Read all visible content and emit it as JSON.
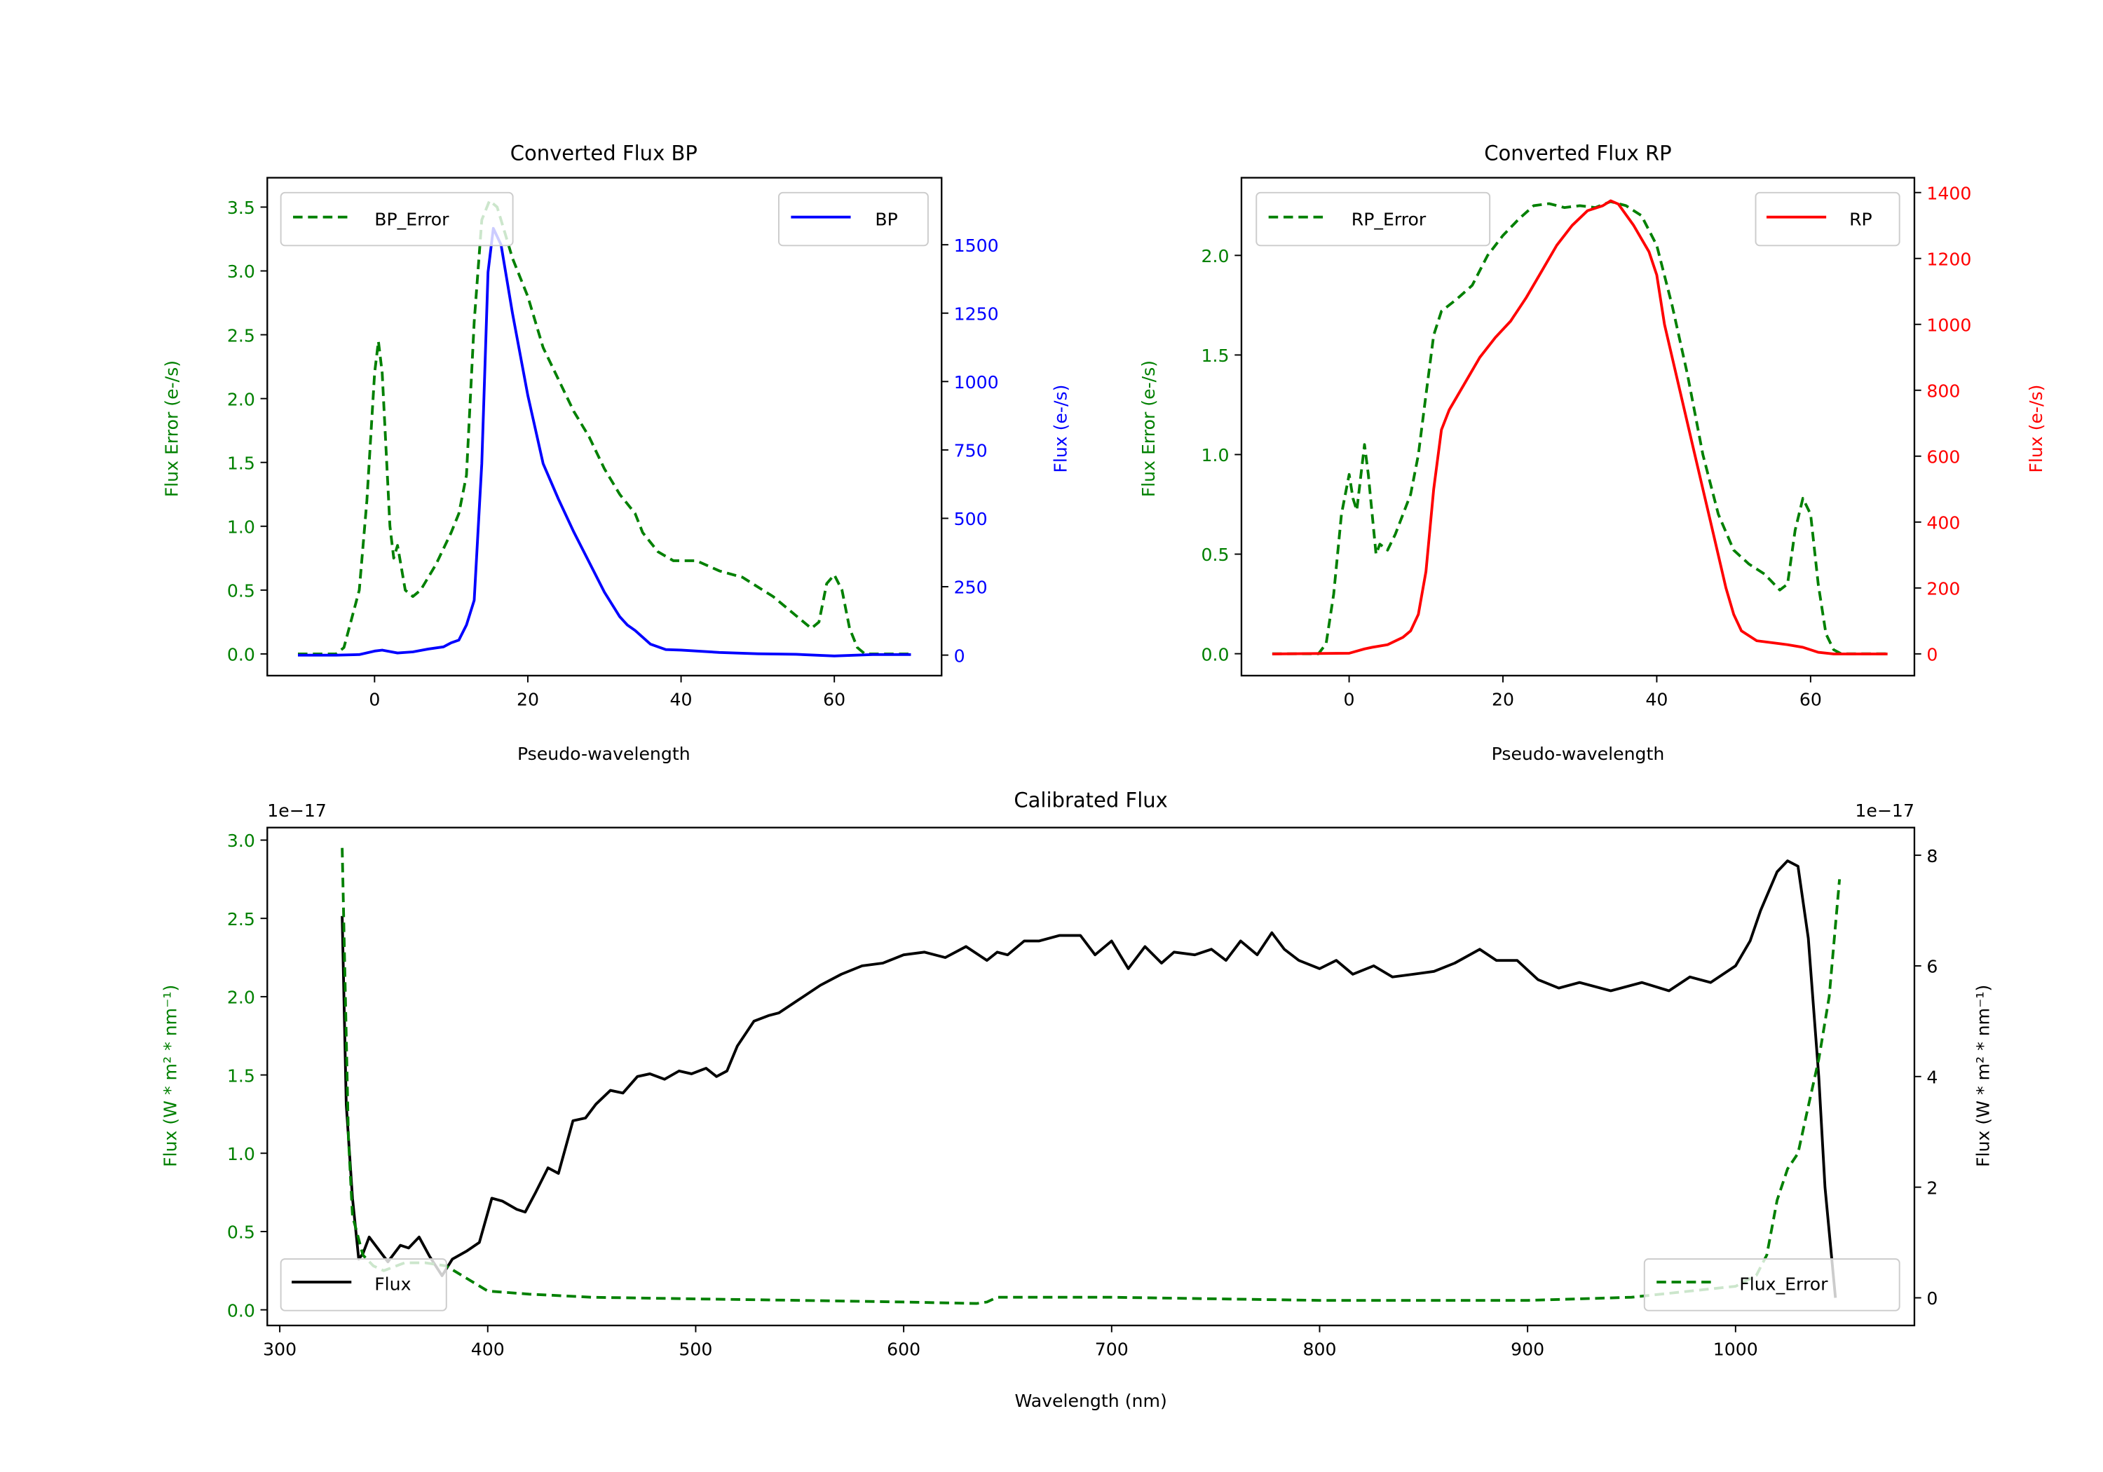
{
  "colors": {
    "green": "#008000",
    "blue": "#0000ff",
    "red": "#ff0000",
    "black": "#000000"
  },
  "chart_data": [
    {
      "id": "bp",
      "type": "line",
      "title": "Converted Flux BP",
      "xlabel": "Pseudo-wavelength",
      "ylabel": "Flux Error (e-/s)",
      "y2label": "Flux (e-/s)",
      "xticks": [
        0,
        20,
        40,
        60
      ],
      "yticks": [
        "0.0",
        "0.5",
        "1.0",
        "1.5",
        "2.0",
        "2.5",
        "3.0",
        "3.5"
      ],
      "y2ticks": [
        "0",
        "250",
        "500",
        "750",
        "1000",
        "1250",
        "1500"
      ],
      "legend_left": "BP_Error",
      "legend_right": "BP",
      "legend_placement": [
        "upper-left",
        "upper-right"
      ],
      "series": [
        {
          "name": "BP_Error",
          "axis": "left",
          "style": "dashed",
          "color": "#008000",
          "x": [
            -10,
            -5,
            -4,
            -2,
            -1,
            0,
            0.5,
            1,
            2,
            2.5,
            3,
            4,
            5,
            6,
            8,
            10,
            11,
            12,
            13,
            14,
            15,
            16,
            17,
            18,
            20,
            22,
            24,
            26,
            28,
            30,
            32,
            34,
            35,
            37,
            39,
            42,
            45,
            48,
            52,
            55,
            57,
            58,
            59,
            60,
            61,
            62,
            63,
            64,
            70
          ],
          "y": [
            0,
            0,
            0.05,
            0.5,
            1.2,
            2.2,
            2.45,
            2.2,
            1.0,
            0.75,
            0.85,
            0.5,
            0.45,
            0.5,
            0.7,
            0.95,
            1.1,
            1.4,
            2.6,
            3.4,
            3.55,
            3.5,
            3.3,
            3.1,
            2.8,
            2.4,
            2.15,
            1.9,
            1.7,
            1.45,
            1.25,
            1.1,
            0.95,
            0.8,
            0.73,
            0.73,
            0.65,
            0.6,
            0.45,
            0.3,
            0.2,
            0.25,
            0.55,
            0.62,
            0.5,
            0.2,
            0.05,
            0,
            0
          ]
        },
        {
          "name": "BP",
          "axis": "right",
          "style": "solid",
          "color": "#0000ff",
          "x": [
            -10,
            -5,
            -2,
            0,
            1,
            3,
            5,
            7,
            9,
            10,
            11,
            12,
            13,
            14,
            14.8,
            15.5,
            16.5,
            18,
            20,
            22,
            24,
            26,
            28,
            30,
            32,
            33,
            34,
            36,
            38,
            40,
            45,
            50,
            55,
            60,
            65,
            70
          ],
          "y": [
            0,
            0,
            2,
            15,
            18,
            8,
            12,
            22,
            30,
            45,
            55,
            110,
            200,
            700,
            1400,
            1560,
            1500,
            1250,
            950,
            700,
            570,
            450,
            340,
            230,
            140,
            110,
            90,
            40,
            20,
            18,
            10,
            5,
            3,
            -3,
            2,
            2
          ]
        }
      ],
      "xlim": [
        -14,
        74
      ],
      "ylim": [
        -0.17,
        3.73
      ],
      "y2lim": [
        -75,
        1745
      ]
    },
    {
      "id": "rp",
      "type": "line",
      "title": "Converted Flux RP",
      "xlabel": "Pseudo-wavelength",
      "ylabel": "Flux Error (e-/s)",
      "y2label": "Flux (e-/s)",
      "xticks": [
        0,
        20,
        40,
        60
      ],
      "yticks": [
        "0.0",
        "0.5",
        "1.0",
        "1.5",
        "2.0"
      ],
      "y2ticks": [
        "0",
        "200",
        "400",
        "600",
        "800",
        "1000",
        "1200",
        "1400"
      ],
      "legend_left": "RP_Error",
      "legend_right": "RP",
      "legend_placement": [
        "upper-left",
        "upper-right"
      ],
      "series": [
        {
          "name": "RP_Error",
          "axis": "left",
          "style": "dashed",
          "color": "#008000",
          "x": [
            -10,
            -4,
            -3,
            -2,
            -1,
            0,
            0.5,
            1,
            2,
            2.5,
            3.5,
            4,
            5,
            6,
            8,
            9,
            10,
            11,
            12,
            14,
            16,
            18,
            20,
            22,
            24,
            26,
            28,
            30,
            32,
            34,
            36,
            38,
            40,
            42,
            44,
            46,
            48,
            50,
            52,
            54,
            56,
            57,
            58,
            59,
            60,
            61,
            62,
            63,
            64,
            70
          ],
          "y": [
            0,
            0,
            0.05,
            0.3,
            0.7,
            0.9,
            0.78,
            0.72,
            1.05,
            0.9,
            0.5,
            0.55,
            0.52,
            0.6,
            0.8,
            1.0,
            1.3,
            1.6,
            1.72,
            1.78,
            1.85,
            2.0,
            2.1,
            2.18,
            2.25,
            2.26,
            2.24,
            2.25,
            2.24,
            2.27,
            2.25,
            2.2,
            2.05,
            1.75,
            1.4,
            1.0,
            0.7,
            0.52,
            0.45,
            0.4,
            0.32,
            0.35,
            0.62,
            0.78,
            0.7,
            0.35,
            0.1,
            0.02,
            0,
            0
          ]
        },
        {
          "name": "RP",
          "axis": "right",
          "style": "solid",
          "color": "#ff0000",
          "x": [
            -10,
            0,
            2,
            3,
            5,
            7,
            8,
            9,
            10,
            11,
            12,
            13,
            15,
            17,
            19,
            21,
            23,
            25,
            27,
            29,
            31,
            33,
            34,
            35,
            37,
            39,
            40,
            41,
            43,
            45,
            47,
            49,
            50,
            51,
            53,
            57,
            59,
            61,
            63,
            70
          ],
          "y": [
            0,
            2,
            15,
            20,
            28,
            50,
            70,
            120,
            250,
            500,
            680,
            740,
            820,
            900,
            960,
            1010,
            1080,
            1160,
            1240,
            1300,
            1345,
            1360,
            1375,
            1365,
            1300,
            1220,
            1150,
            1000,
            800,
            600,
            400,
            200,
            120,
            70,
            40,
            28,
            20,
            5,
            0,
            0
          ]
        }
      ],
      "xlim": [
        -14,
        73.5
      ],
      "ylim": [
        -0.11,
        2.39
      ],
      "y2lim": [
        -66,
        1445
      ]
    },
    {
      "id": "cal",
      "type": "line",
      "title": "Calibrated Flux",
      "xlabel": "Wavelength (nm)",
      "ylabel": "Flux (W * m² * nm⁻¹)",
      "y2label": "Flux (W * m² * nm⁻¹)",
      "offset_left": "1e−17",
      "offset_right": "1e−17",
      "xticks": [
        300,
        400,
        500,
        600,
        700,
        800,
        900,
        1000
      ],
      "yticks": [
        "0.0",
        "0.5",
        "1.0",
        "1.5",
        "2.0",
        "2.5",
        "3.0"
      ],
      "y2ticks": [
        "0",
        "2",
        "4",
        "6",
        "8"
      ],
      "legend_left": "Flux",
      "legend_right": "Flux_Error",
      "legend_placement": [
        "lower-left",
        "lower-right"
      ],
      "series": [
        {
          "name": "Flux",
          "axis": "right",
          "style": "solid",
          "color": "#000000",
          "unit_scale": "1e-17",
          "x": [
            330,
            332,
            335,
            338,
            340,
            343,
            347,
            352,
            358,
            362,
            367,
            372,
            378,
            383,
            390,
            396,
            402,
            407,
            414,
            418,
            423,
            429,
            434,
            441,
            447,
            452,
            459,
            465,
            472,
            478,
            485,
            492,
            498,
            505,
            510,
            515,
            520,
            528,
            535,
            540,
            550,
            560,
            570,
            580,
            590,
            600,
            610,
            620,
            630,
            640,
            645,
            650,
            658,
            665,
            675,
            685,
            692,
            700,
            708,
            716,
            724,
            730,
            740,
            748,
            755,
            762,
            770,
            777,
            783,
            790,
            800,
            808,
            816,
            826,
            835,
            845,
            855,
            865,
            877,
            885,
            895,
            905,
            915,
            925,
            940,
            955,
            968,
            978,
            988,
            1000,
            1007,
            1012,
            1020,
            1025,
            1030,
            1035,
            1040,
            1043,
            1048
          ],
          "y": [
            6.9,
            3.5,
            1.8,
            0.7,
            0.8,
            1.1,
            0.9,
            0.65,
            0.95,
            0.9,
            1.1,
            0.75,
            0.4,
            0.7,
            0.85,
            1.0,
            1.8,
            1.75,
            1.6,
            1.55,
            1.9,
            2.35,
            2.25,
            3.2,
            3.25,
            3.5,
            3.75,
            3.7,
            4.0,
            4.05,
            3.95,
            4.1,
            4.05,
            4.15,
            4.0,
            4.1,
            4.55,
            5.0,
            5.1,
            5.15,
            5.4,
            5.65,
            5.85,
            6.0,
            6.05,
            6.2,
            6.25,
            6.15,
            6.35,
            6.1,
            6.25,
            6.2,
            6.45,
            6.45,
            6.55,
            6.55,
            6.2,
            6.45,
            5.95,
            6.35,
            6.05,
            6.25,
            6.2,
            6.3,
            6.1,
            6.45,
            6.2,
            6.6,
            6.3,
            6.1,
            5.95,
            6.1,
            5.85,
            6.0,
            5.8,
            5.85,
            5.9,
            6.05,
            6.3,
            6.1,
            6.1,
            5.75,
            5.6,
            5.7,
            5.55,
            5.7,
            5.55,
            5.8,
            5.7,
            6.0,
            6.45,
            7.0,
            7.7,
            7.9,
            7.8,
            6.5,
            4.0,
            2.0,
            0
          ]
        },
        {
          "name": "Flux_Error",
          "axis": "left",
          "style": "dashed",
          "color": "#008000",
          "unit_scale": "1e-17",
          "x": [
            330,
            333,
            335,
            340,
            345,
            350,
            360,
            370,
            380,
            390,
            400,
            420,
            450,
            500,
            550,
            600,
            635,
            640,
            645,
            700,
            800,
            900,
            950,
            1000,
            1010,
            1015,
            1020,
            1025,
            1030,
            1035,
            1040,
            1045,
            1050
          ],
          "y": [
            2.95,
            1.1,
            0.6,
            0.35,
            0.28,
            0.25,
            0.3,
            0.3,
            0.28,
            0.2,
            0.12,
            0.1,
            0.08,
            0.07,
            0.06,
            0.05,
            0.04,
            0.05,
            0.08,
            0.08,
            0.06,
            0.06,
            0.08,
            0.15,
            0.22,
            0.35,
            0.7,
            0.9,
            1.0,
            1.3,
            1.6,
            2.0,
            2.75
          ]
        }
      ],
      "xlim": [
        294,
        1086
      ],
      "ylim": [
        -0.1,
        3.08
      ],
      "y2lim": [
        -0.5,
        8.5
      ]
    }
  ]
}
